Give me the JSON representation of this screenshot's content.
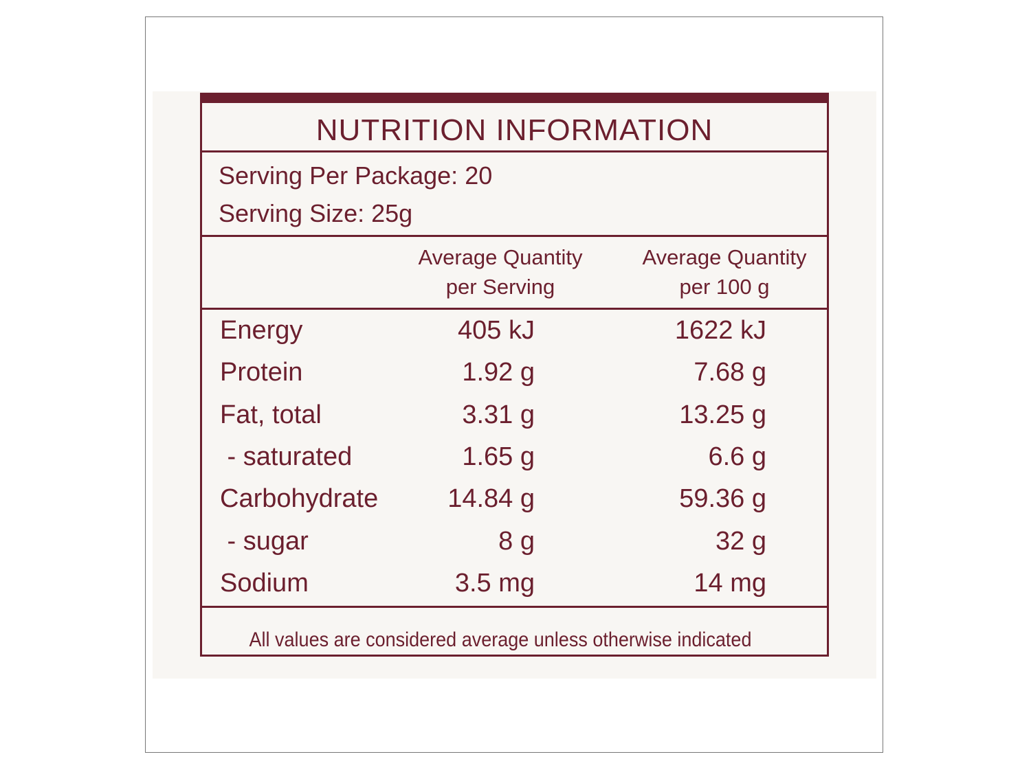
{
  "label": {
    "title": "NUTRITION INFORMATION",
    "serving": [
      "Serving Per Package: 20",
      "Serving Size: 25g"
    ],
    "columns": [
      [
        "Average Quantity",
        "per Serving"
      ],
      [
        "Average Quantity",
        "per 100 g"
      ]
    ],
    "rows": [
      [
        "Energy",
        "405 kJ",
        "1622 kJ"
      ],
      [
        "Protein",
        "1.92 g",
        "7.68 g"
      ],
      [
        "Fat, total",
        "3.31 g",
        "13.25 g"
      ],
      [
        " - saturated",
        "1.65 g",
        "6.6 g"
      ],
      [
        "Carbohydrate",
        "14.84 g",
        "59.36 g"
      ],
      [
        " - sugar",
        "8 g",
        "32 g"
      ],
      [
        "Sodium",
        "3.5 mg",
        "14 mg"
      ]
    ],
    "footer": "All values are considered average unless otherwise indicated"
  }
}
